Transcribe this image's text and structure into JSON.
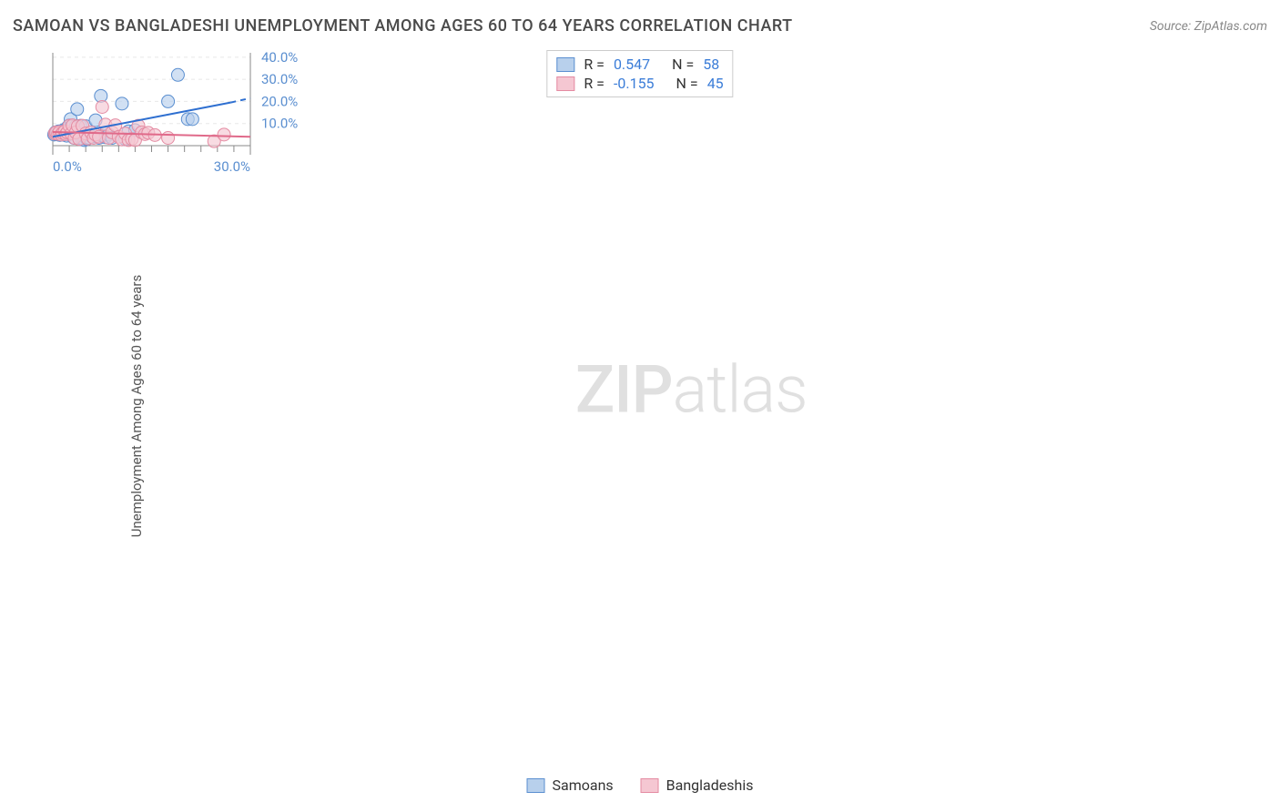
{
  "header": {
    "title": "SAMOAN VS BANGLADESHI UNEMPLOYMENT AMONG AGES 60 TO 64 YEARS CORRELATION CHART",
    "source": "Source: ZipAtlas.com"
  },
  "y_axis_label": "Unemployment Among Ages 60 to 64 years",
  "watermark": {
    "bold": "ZIP",
    "light": "atlas"
  },
  "legend_top": [
    {
      "swatch_fill": "#b8d0ec",
      "swatch_border": "#5b8fd0",
      "r_label": "R =",
      "r_value": "0.547",
      "n_label": "N =",
      "n_value": "58"
    },
    {
      "swatch_fill": "#f5c7d2",
      "swatch_border": "#e48ba2",
      "r_label": "R =",
      "r_value": "-0.155",
      "n_label": "N =",
      "n_value": "45"
    }
  ],
  "legend_bottom": [
    {
      "swatch_fill": "#b8d0ec",
      "swatch_border": "#5b8fd0",
      "label": "Samoans"
    },
    {
      "swatch_fill": "#f5c7d2",
      "swatch_border": "#e48ba2",
      "label": "Bangladeshis"
    }
  ],
  "chart": {
    "type": "scatter",
    "background_color": "#ffffff",
    "grid_color": "#e8e8e8",
    "axis_color": "#888888",
    "tick_label_color": "#5b8fd0",
    "tick_fontsize": 15,
    "xlim": [
      0,
      30
    ],
    "ylim": [
      0,
      42
    ],
    "x_ticks": [
      {
        "v": 0,
        "label": "0.0%"
      },
      {
        "v": 30,
        "label": "30.0%"
      }
    ],
    "x_minor_ticks": [
      2.5,
      5,
      7.5,
      10,
      12.5,
      15,
      17.5,
      20,
      22.5,
      25,
      27.5
    ],
    "y_ticks": [
      {
        "v": 10,
        "label": "10.0%"
      },
      {
        "v": 20,
        "label": "20.0%"
      },
      {
        "v": 30,
        "label": "30.0%"
      },
      {
        "v": 40,
        "label": "40.0%"
      }
    ],
    "marker_radius": 7,
    "marker_opacity": 0.65,
    "series": [
      {
        "name": "Samoans",
        "fill": "#b8d0ec",
        "stroke": "#5b8fd0",
        "points": [
          [
            0.2,
            5.0
          ],
          [
            0.3,
            5.5
          ],
          [
            0.4,
            6.0
          ],
          [
            0.5,
            5.2
          ],
          [
            0.6,
            5.8
          ],
          [
            0.7,
            6.2
          ],
          [
            0.8,
            5.0
          ],
          [
            0.9,
            6.5
          ],
          [
            1.0,
            5.4
          ],
          [
            1.1,
            4.8
          ],
          [
            1.2,
            6.0
          ],
          [
            1.3,
            5.6
          ],
          [
            1.4,
            6.3
          ],
          [
            1.5,
            5.0
          ],
          [
            1.6,
            7.0
          ],
          [
            1.8,
            5.2
          ],
          [
            2.0,
            6.8
          ],
          [
            2.1,
            4.5
          ],
          [
            2.3,
            8.5
          ],
          [
            2.5,
            9.2
          ],
          [
            2.7,
            12.0
          ],
          [
            2.8,
            8.5
          ],
          [
            3.0,
            5.5
          ],
          [
            3.2,
            3.5
          ],
          [
            3.5,
            8.8
          ],
          [
            3.7,
            16.5
          ],
          [
            4.0,
            3.2
          ],
          [
            4.2,
            9.0
          ],
          [
            4.5,
            2.8
          ],
          [
            4.8,
            2.5
          ],
          [
            5.0,
            8.8
          ],
          [
            5.2,
            3.0
          ],
          [
            5.5,
            3.5
          ],
          [
            6.0,
            4.0
          ],
          [
            6.5,
            11.5
          ],
          [
            7.0,
            3.5
          ],
          [
            7.3,
            22.5
          ],
          [
            7.5,
            4.5
          ],
          [
            8.0,
            3.8
          ],
          [
            8.5,
            5.0
          ],
          [
            9.0,
            3.5
          ],
          [
            10.5,
            19.0
          ],
          [
            11.0,
            3.0
          ],
          [
            11.5,
            6.5
          ],
          [
            12.5,
            7.0
          ],
          [
            17.5,
            20.0
          ],
          [
            19.0,
            32.0
          ],
          [
            20.5,
            12.0
          ],
          [
            21.2,
            12.0
          ]
        ],
        "trend": {
          "x1": 0,
          "y1": 4.0,
          "x2": 27,
          "y2": 19.5,
          "x_dash_end": 30,
          "y_dash_end": 21.5,
          "color": "#2e6fd0",
          "width": 2
        }
      },
      {
        "name": "Bangladeshis",
        "fill": "#f5c7d2",
        "stroke": "#e48ba2",
        "points": [
          [
            0.3,
            5.5
          ],
          [
            0.5,
            6.0
          ],
          [
            0.8,
            5.3
          ],
          [
            1.0,
            6.2
          ],
          [
            1.3,
            5.0
          ],
          [
            1.5,
            5.8
          ],
          [
            1.8,
            6.5
          ],
          [
            2.0,
            5.2
          ],
          [
            2.2,
            6.0
          ],
          [
            2.5,
            9.0
          ],
          [
            2.8,
            5.5
          ],
          [
            3.0,
            9.2
          ],
          [
            3.3,
            3.5
          ],
          [
            3.5,
            6.0
          ],
          [
            3.8,
            8.8
          ],
          [
            4.0,
            3.0
          ],
          [
            4.5,
            9.0
          ],
          [
            5.0,
            5.5
          ],
          [
            5.3,
            3.2
          ],
          [
            5.8,
            6.0
          ],
          [
            6.2,
            3.5
          ],
          [
            6.5,
            5.0
          ],
          [
            7.0,
            4.0
          ],
          [
            7.5,
            17.5
          ],
          [
            8.0,
            9.5
          ],
          [
            8.5,
            3.5
          ],
          [
            9.0,
            6.0
          ],
          [
            9.5,
            9.2
          ],
          [
            10.0,
            4.0
          ],
          [
            10.5,
            2.8
          ],
          [
            11.0,
            5.5
          ],
          [
            11.5,
            2.5
          ],
          [
            12.0,
            3.0
          ],
          [
            12.5,
            2.5
          ],
          [
            13.0,
            9.0
          ],
          [
            13.5,
            6.0
          ],
          [
            14.0,
            5.2
          ],
          [
            14.5,
            5.8
          ],
          [
            15.5,
            4.8
          ],
          [
            17.5,
            3.5
          ],
          [
            24.5,
            2.0
          ],
          [
            26.0,
            5.0
          ]
        ],
        "trend": {
          "x1": 0,
          "y1": 6.2,
          "x2": 30,
          "y2": 4.0,
          "color": "#e06a8a",
          "width": 2
        }
      }
    ]
  }
}
